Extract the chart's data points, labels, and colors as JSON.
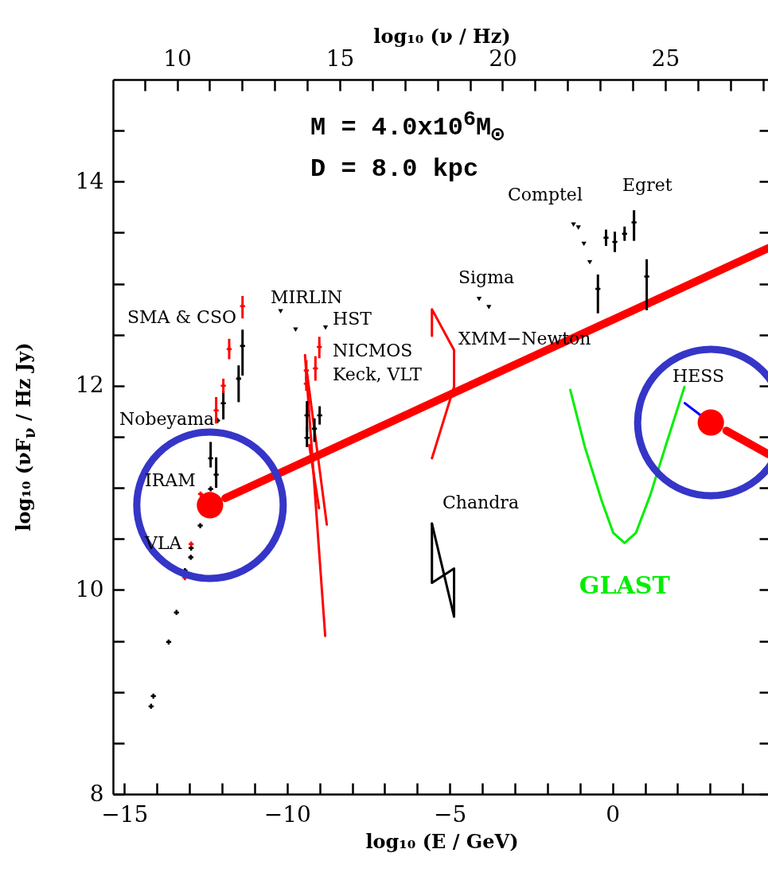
{
  "chart_data": {
    "type": "scatter",
    "xlabel": "log₁₀ (E / GeV)",
    "x2label": "log₁₀ (ν / Hz)",
    "ylabel": "log₁₀ (νF$_{ν}$ / Hz Jy)",
    "xlim": [
      -15.35,
      4.85
    ],
    "ylim": [
      8,
      15
    ],
    "x2lim": [
      8.03,
      28.23
    ],
    "xticks": [
      {
        "value": -15,
        "label": "−15"
      },
      {
        "value": -14,
        "label": null
      },
      {
        "value": -13,
        "label": null
      },
      {
        "value": -12,
        "label": null
      },
      {
        "value": -11,
        "label": null
      },
      {
        "value": -10,
        "label": "−10"
      },
      {
        "value": -9,
        "label": null
      },
      {
        "value": -8,
        "label": null
      },
      {
        "value": -7,
        "label": null
      },
      {
        "value": -6,
        "label": null
      },
      {
        "value": -5,
        "label": "−5"
      },
      {
        "value": -4,
        "label": null
      },
      {
        "value": -3,
        "label": null
      },
      {
        "value": -2,
        "label": null
      },
      {
        "value": -1,
        "label": null
      },
      0,
      {
        "value": 1,
        "label": null
      },
      {
        "value": 2,
        "label": null
      },
      {
        "value": 3,
        "label": null
      },
      {
        "value": 4,
        "label": null
      }
    ],
    "x2ticks": [
      {
        "value": 9,
        "label": null
      },
      10,
      {
        "value": 11,
        "label": null
      },
      {
        "value": 12,
        "label": null
      },
      {
        "value": 13,
        "label": null
      },
      {
        "value": 14,
        "label": null
      },
      15,
      {
        "value": 16,
        "label": null
      },
      {
        "value": 17,
        "label": null
      },
      {
        "value": 18,
        "label": null
      },
      {
        "value": 19,
        "label": null
      },
      20,
      {
        "value": 21,
        "label": null
      },
      {
        "value": 22,
        "label": null
      },
      {
        "value": 23,
        "label": null
      },
      {
        "value": 24,
        "label": null
      },
      25,
      {
        "value": 26,
        "label": null
      },
      {
        "value": 27,
        "label": null
      },
      {
        "value": 28,
        "label": null
      }
    ],
    "yticks": [
      8,
      {
        "value": 8.5,
        "label": null
      },
      {
        "value": 9,
        "label": null
      },
      {
        "value": 9.5,
        "label": null
      },
      10,
      {
        "value": 10.5,
        "label": null
      },
      {
        "value": 11,
        "label": null
      },
      {
        "value": 11.5,
        "label": null
      },
      12,
      {
        "value": 12.5,
        "label": null
      },
      {
        "value": 13,
        "label": null
      },
      {
        "value": 13.5,
        "label": null
      },
      14,
      {
        "value": 14.5,
        "label": null
      }
    ],
    "grid": false,
    "series": [
      {
        "marker": "cross",
        "color": "#000000",
        "x": [
          -14.18,
          -14.11,
          -13.64,
          -13.4,
          -13.14,
          -12.96,
          -12.95,
          -12.67,
          -12.35,
          -12.35,
          -12.18,
          -12.14,
          -11.96,
          -11.49,
          -11.37,
          -9.39,
          -9.39,
          -9.16,
          -9.0,
          -0.45,
          -0.2,
          0.07,
          0.37,
          0.66,
          1.05
        ],
        "values": [
          8.86,
          8.96,
          9.49,
          9.78,
          10.19,
          10.32,
          10.41,
          10.63,
          10.99,
          11.29,
          11.13,
          11.66,
          11.83,
          12.07,
          12.39,
          11.71,
          11.49,
          11.58,
          11.71,
          12.95,
          13.45,
          13.41,
          13.49,
          13.6,
          13.07
        ],
        "errors": [
          null,
          null,
          null,
          null,
          null,
          null,
          null,
          null,
          null,
          [
            11.2,
            11.45
          ],
          [
            11.0,
            11.3
          ],
          null,
          [
            11.67,
            11.95
          ],
          [
            11.84,
            12.2
          ],
          [
            12.1,
            12.55
          ],
          [
            11.55,
            11.85
          ],
          [
            11.4,
            11.6
          ],
          [
            11.45,
            11.68
          ],
          [
            11.62,
            11.8
          ],
          [
            12.71,
            13.09
          ],
          [
            13.37,
            13.53
          ],
          [
            13.31,
            13.51
          ],
          [
            13.42,
            13.56
          ],
          [
            13.42,
            13.72
          ],
          [
            12.74,
            13.24
          ]
        ]
      },
      {
        "marker": "cross",
        "color": "#ff0000",
        "x": [
          -13.14,
          -12.95,
          -12.66,
          -12.18,
          -11.96,
          -11.78,
          -11.37,
          -9.41,
          -9.41,
          -9.13,
          -9.01
        ],
        "values": [
          10.12,
          10.45,
          10.94,
          11.76,
          12.0,
          12.36,
          12.78,
          12.15,
          12.02,
          12.17,
          12.38
        ],
        "errors": [
          null,
          null,
          null,
          [
            11.63,
            11.89
          ],
          [
            11.93,
            12.07
          ],
          [
            12.26,
            12.46
          ],
          [
            12.66,
            12.88
          ],
          [
            12.05,
            12.25
          ],
          [
            11.95,
            12.1
          ],
          [
            12.05,
            12.29
          ],
          [
            12.27,
            12.48
          ]
        ]
      },
      {
        "marker": "triangle",
        "color": "#000000",
        "x": [
          -10.2,
          -9.74,
          -8.82,
          -4.1,
          -3.8,
          -1.2,
          -1.05,
          -0.88,
          -0.7
        ],
        "values": [
          12.73,
          12.55,
          12.57,
          12.85,
          12.77,
          13.58,
          13.55,
          13.39,
          13.21
        ]
      },
      {
        "type": "line",
        "color": "#ff0000",
        "x": [
          -11.9,
          4.79
        ],
        "values": [
          10.9,
          13.35
        ]
      },
      {
        "type": "line",
        "color": "#ff0000",
        "x": [
          3.5,
          4.79
        ],
        "values": [
          11.56,
          11.33
        ]
      },
      {
        "type": "line",
        "color": "#0000ff",
        "x": [
          2.22,
          2.71
        ],
        "values": [
          11.83,
          11.71
        ]
      },
      {
        "type": "line",
        "name": "GLAST",
        "color": "#00ee00",
        "x": [
          -1.3,
          -0.85,
          -0.33,
          0.02,
          0.37,
          0.72,
          1.16,
          1.65,
          2.21
        ],
        "values": [
          11.96,
          11.4,
          10.87,
          10.56,
          10.46,
          10.56,
          10.93,
          11.43,
          11.99
        ]
      },
      {
        "type": "line",
        "color": "#ff0000",
        "x": [
          -5.55,
          -5.55,
          -4.87,
          -4.87,
          -5.55
        ],
        "values": [
          12.49,
          12.75,
          12.35,
          11.99,
          11.29
        ]
      },
      {
        "type": "line",
        "color": "#000000",
        "x": [
          -5.55,
          -5.55,
          -4.87,
          -4.87
        ],
        "values": [
          10.65,
          10.07,
          10.21,
          9.74
        ]
      },
      {
        "type": "line",
        "color": "#000000",
        "x": [
          -5.55,
          -4.87
        ],
        "values": [
          10.65,
          9.74
        ]
      },
      {
        "type": "line",
        "color": "#ff0000",
        "x": [
          -9.45,
          -8.83
        ],
        "values": [
          12.3,
          9.55
        ]
      },
      {
        "type": "line",
        "color": "#ff0000",
        "x": [
          -9.39,
          -8.78
        ],
        "values": [
          12.13,
          10.64
        ]
      },
      {
        "type": "line",
        "color": "#ff0000",
        "x": [
          -9.32,
          -9.02
        ],
        "values": [
          11.42,
          10.8
        ]
      },
      {
        "type": "bubble",
        "color": "#ff0000",
        "x": [
          -12.37,
          3.02
        ],
        "values": [
          10.83,
          11.64
        ],
        "sizes": [
          1,
          1
        ]
      }
    ],
    "annotations": [
      "M = 4.0x10$^{6}$M$_{⊙}$",
      "D = 8.0 kpc",
      "SMA & CSO",
      "MIRLIN",
      "HST",
      "NICMOS",
      "Keck, VLT",
      "Nobeyama",
      "IRAM",
      "VLA",
      "Sigma",
      "XMM−Newton",
      "Comptel",
      "Egret",
      "Chandra",
      "HESS"
    ]
  }
}
